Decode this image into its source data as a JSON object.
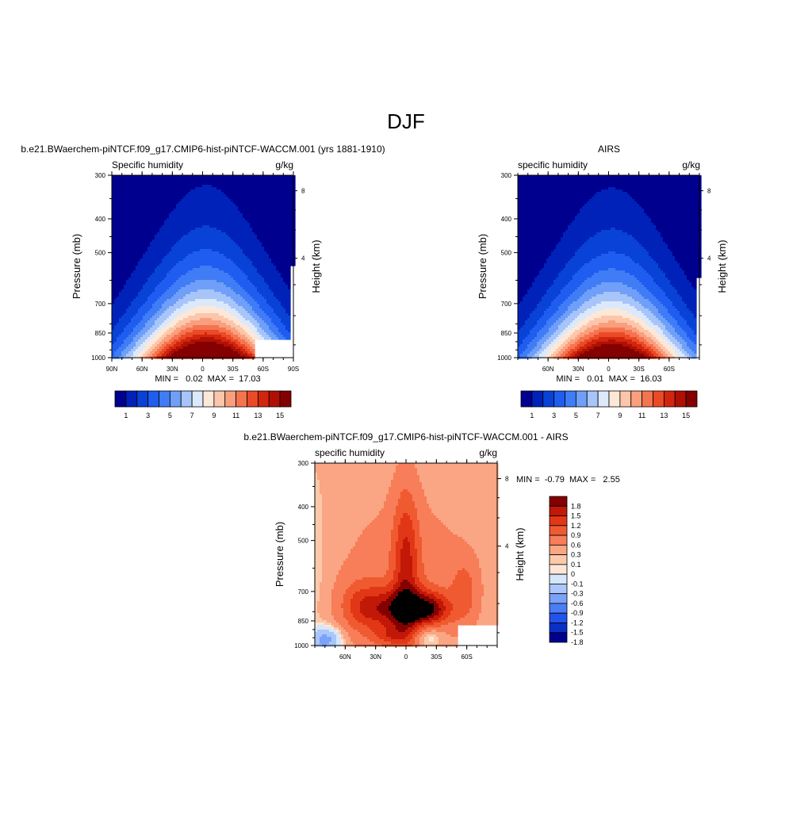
{
  "page": {
    "title": "DJF"
  },
  "colors": {
    "cb_specific": [
      "#00008f",
      "#0022b8",
      "#0842d6",
      "#1f5df0",
      "#3f7cf6",
      "#6f9ff8",
      "#a8c5f9",
      "#dce9fb",
      "#fde8d8",
      "#fcc6aa",
      "#fa9f7d",
      "#f57450",
      "#ea4a26",
      "#d1250e",
      "#b01004",
      "#850000"
    ],
    "cb_diff": [
      "#00008f",
      "#0a2fc6",
      "#2352ec",
      "#4b7df5",
      "#7aa2f8",
      "#aac6fa",
      "#d6e6fc",
      "#fde6d6",
      "#fcc9ab",
      "#faa583",
      "#f77e58",
      "#f05a31",
      "#e23716",
      "#c11807",
      "#850000"
    ]
  },
  "chart_data": [
    {
      "type": "heatmap",
      "title": "b.e21.BWaerchem-piNTCF.f09_g17.CMIP6-hist-piNTCF-WACCM.001 (yrs 1881-1910)",
      "left_label": "Specific humidity",
      "right_label": "g/kg",
      "ylabel": "Pressure (mb)",
      "ylabel_right": "Height (km)",
      "x_ticks": [
        "90N",
        "60N",
        "30N",
        "0",
        "30S",
        "60S",
        "90S"
      ],
      "y_ticks": [
        "300",
        "400",
        "500",
        "700",
        "850",
        "1000"
      ],
      "y2_ticks": [
        "8",
        "4"
      ],
      "stats": "MIN =   0.02  MAX =  17.03",
      "colorbar_labels": [
        "1",
        "3",
        "5",
        "7",
        "9",
        "11",
        "13",
        "15"
      ],
      "levels": [
        1,
        2,
        3,
        4,
        5,
        6,
        7,
        8,
        9,
        10,
        11,
        12,
        13,
        14,
        15
      ],
      "peak_value": 17.03,
      "min_value": 0.02
    },
    {
      "type": "heatmap",
      "title": "AIRS",
      "left_label": "specific humidity",
      "right_label": "g/kg",
      "ylabel": "Pressure (mb)",
      "ylabel_right": "Height (km)",
      "x_ticks": [
        "60N",
        "30N",
        "0",
        "30S",
        "60S"
      ],
      "y_ticks": [
        "300",
        "400",
        "500",
        "700",
        "850",
        "1000"
      ],
      "y2_ticks": [
        "8",
        "4"
      ],
      "stats": "MIN =   0.01  MAX =  16.03",
      "colorbar_labels": [
        "1",
        "3",
        "5",
        "7",
        "9",
        "11",
        "13",
        "15"
      ],
      "levels": [
        1,
        2,
        3,
        4,
        5,
        6,
        7,
        8,
        9,
        10,
        11,
        12,
        13,
        14,
        15
      ],
      "peak_value": 16.03,
      "min_value": 0.01
    },
    {
      "type": "heatmap",
      "title": "b.e21.BWaerchem-piNTCF.f09_g17.CMIP6-hist-piNTCF-WACCM.001 - AIRS",
      "left_label": "specific humidity",
      "right_label": "g/kg",
      "ylabel": "Pressure (mb)",
      "ylabel_right": "Height (km)",
      "x_ticks": [
        "60N",
        "30N",
        "0",
        "30S",
        "60S"
      ],
      "y_ticks": [
        "300",
        "400",
        "500",
        "700",
        "850",
        "1000"
      ],
      "y2_ticks": [
        "8",
        "4"
      ],
      "stats": "MIN =  -0.79  MAX =   2.55",
      "colorbar_labels": [
        "1.8",
        "1.5",
        "1.2",
        "0.9",
        "0.6",
        "0.3",
        "0.1",
        "0",
        "-0.1",
        "-0.3",
        "-0.6",
        "-0.9",
        "-1.2",
        "-1.5",
        "-1.8"
      ],
      "levels": [
        -1.8,
        -1.5,
        -1.2,
        -0.9,
        -0.6,
        -0.3,
        -0.1,
        0,
        0.1,
        0.3,
        0.6,
        0.9,
        1.2,
        1.5,
        1.8
      ],
      "peak_value": 2.55,
      "min_value": -0.79
    }
  ]
}
